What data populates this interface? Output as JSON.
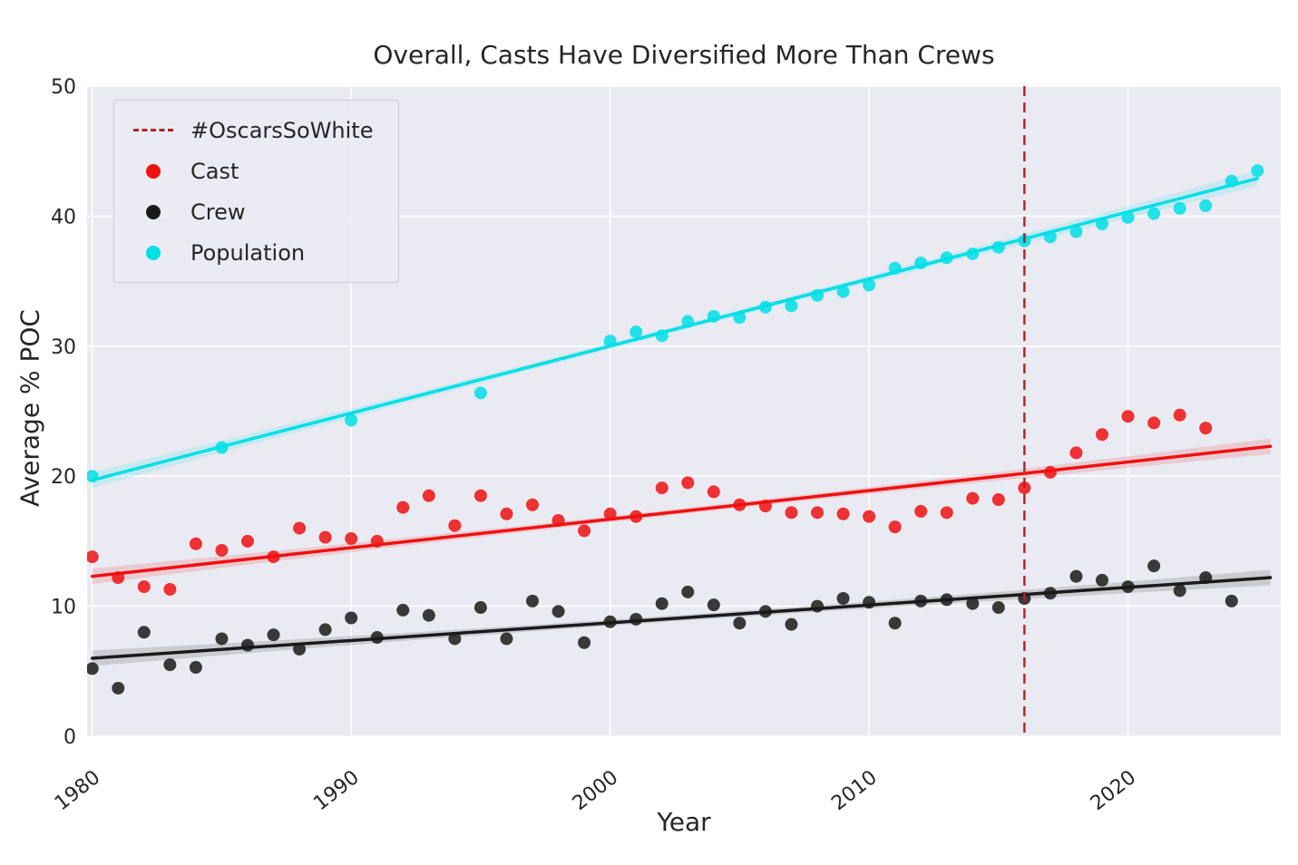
{
  "figure": {
    "title": "Overall, Casts Have Diversified More Than Crews",
    "xlabel": "Year",
    "ylabel": "Average % POC"
  },
  "legend": {
    "position": "upper left",
    "items": [
      {
        "label": "#OscarsSoWhite",
        "marker": "dashed-line",
        "color": "#b22222"
      },
      {
        "label": "Cast",
        "marker": "dot",
        "color": "#ee1111"
      },
      {
        "label": "Crew",
        "marker": "dot",
        "color": "#1a1a1a"
      },
      {
        "label": "Population",
        "marker": "dot",
        "color": "#00dfe6"
      }
    ]
  },
  "chart_data": {
    "type": "scatter",
    "title": "Overall, Casts Have Diversified More Than Crews",
    "xlabel": "Year",
    "ylabel": "Average % POC",
    "xlim": [
      1979.8,
      2025.9
    ],
    "ylim": [
      0,
      50
    ],
    "xticks": [
      1980,
      1990,
      2000,
      2010,
      2020
    ],
    "yticks": [
      0,
      10,
      20,
      30,
      40,
      50
    ],
    "grid": true,
    "background": "#eaeaf2",
    "gridcolor": "#ffffff",
    "legend_position": "upper left",
    "annotation_line": {
      "label": "#OscarsSoWhite",
      "x": 2016,
      "color": "#b22222",
      "style": "dashed",
      "orientation": "vertical"
    },
    "series": [
      {
        "name": "Cast",
        "color": "#ee1111",
        "x": [
          1980,
          1981,
          1982,
          1983,
          1984,
          1985,
          1986,
          1987,
          1988,
          1989,
          1990,
          1991,
          1992,
          1993,
          1994,
          1995,
          1996,
          1997,
          1998,
          1999,
          2000,
          2001,
          2002,
          2003,
          2004,
          2005,
          2006,
          2007,
          2008,
          2009,
          2010,
          2011,
          2012,
          2013,
          2014,
          2015,
          2016,
          2017,
          2018,
          2019,
          2020,
          2021,
          2022,
          2023
        ],
        "y": [
          13.8,
          12.2,
          11.5,
          11.3,
          14.8,
          14.3,
          15.0,
          13.8,
          16.0,
          15.3,
          15.2,
          15.0,
          17.6,
          18.5,
          16.2,
          18.5,
          17.1,
          17.8,
          16.6,
          15.8,
          17.1,
          16.9,
          19.1,
          19.5,
          18.8,
          17.8,
          17.7,
          17.2,
          17.2,
          17.1,
          16.9,
          16.1,
          17.3,
          17.2,
          18.3,
          18.2,
          19.1,
          20.3,
          21.8,
          23.2,
          24.6,
          24.1,
          24.7,
          23.7
        ],
        "trend": {
          "x": [
            1980,
            2025.5
          ],
          "y": [
            12.3,
            22.3
          ]
        }
      },
      {
        "name": "Crew",
        "color": "#1a1a1a",
        "x": [
          1980,
          1981,
          1982,
          1983,
          1984,
          1985,
          1986,
          1987,
          1988,
          1989,
          1990,
          1991,
          1992,
          1993,
          1994,
          1995,
          1996,
          1997,
          1998,
          1999,
          2000,
          2001,
          2002,
          2003,
          2004,
          2005,
          2006,
          2007,
          2008,
          2009,
          2010,
          2011,
          2012,
          2013,
          2014,
          2015,
          2016,
          2017,
          2018,
          2019,
          2020,
          2021,
          2022,
          2023,
          2024
        ],
        "y": [
          5.2,
          3.7,
          8.0,
          5.5,
          5.3,
          7.5,
          7.0,
          7.8,
          6.7,
          8.2,
          9.1,
          7.6,
          9.7,
          9.3,
          7.5,
          9.9,
          7.5,
          10.4,
          9.6,
          7.2,
          8.8,
          9.0,
          10.2,
          11.1,
          10.1,
          8.7,
          9.6,
          8.6,
          10.0,
          10.6,
          10.3,
          8.7,
          10.4,
          10.5,
          10.2,
          9.9,
          10.6,
          11.0,
          12.3,
          12.0,
          11.5,
          13.1,
          11.2,
          12.2,
          10.4
        ],
        "trend": {
          "x": [
            1980,
            2025.5
          ],
          "y": [
            6.0,
            12.2
          ]
        }
      },
      {
        "name": "Population",
        "color": "#00dfe6",
        "x": [
          1980,
          1985,
          1990,
          1995,
          2000,
          2001,
          2002,
          2003,
          2004,
          2005,
          2006,
          2007,
          2008,
          2009,
          2010,
          2011,
          2012,
          2013,
          2014,
          2015,
          2016,
          2017,
          2018,
          2019,
          2020,
          2021,
          2022,
          2023,
          2024,
          2025
        ],
        "y": [
          20.0,
          22.2,
          24.3,
          26.4,
          30.4,
          31.1,
          30.8,
          31.9,
          32.3,
          32.2,
          33.0,
          33.1,
          33.9,
          34.2,
          34.7,
          36.0,
          36.4,
          36.8,
          37.1,
          37.6,
          38.1,
          38.4,
          38.8,
          39.4,
          39.9,
          40.2,
          40.6,
          40.8,
          42.7,
          43.5
        ],
        "trend": {
          "x": [
            1980,
            2025
          ],
          "y": [
            19.7,
            42.9
          ]
        }
      }
    ]
  }
}
